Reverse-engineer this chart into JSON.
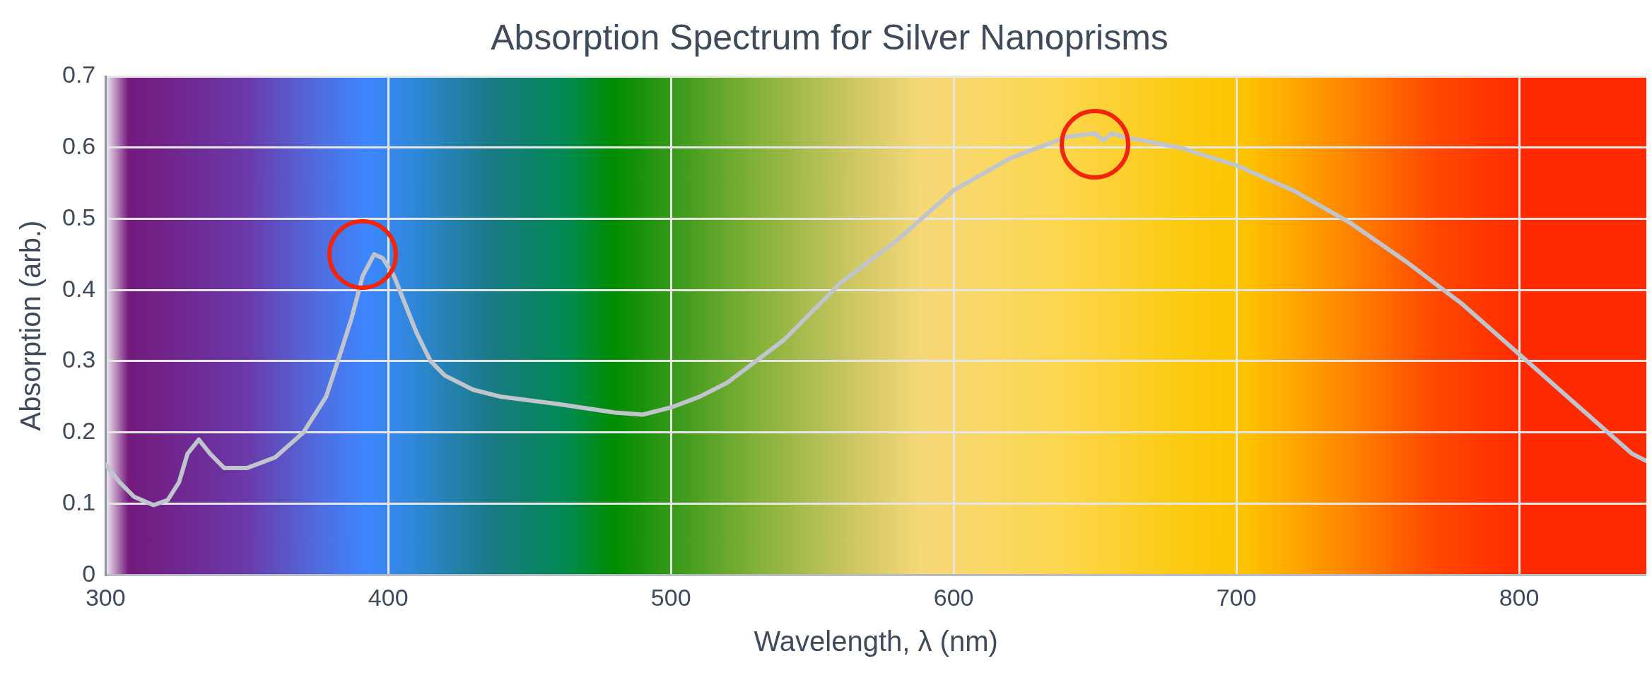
{
  "chart_data": {
    "type": "line",
    "title": "Absorption Spectrum for Silver Nanoprisms",
    "xlabel": "Wavelength, λ (nm)",
    "ylabel": "Absorption (arb.)",
    "x": [
      300,
      305,
      310,
      317,
      322,
      326,
      329,
      333,
      337,
      342,
      350,
      360,
      370,
      378,
      383,
      387,
      391,
      395,
      398,
      402,
      406,
      410,
      415,
      420,
      430,
      440,
      460,
      480,
      490,
      500,
      510,
      520,
      540,
      560,
      580,
      600,
      620,
      640,
      650,
      653,
      656,
      660,
      680,
      700,
      720,
      740,
      760,
      780,
      800,
      820,
      840,
      845
    ],
    "series": [
      {
        "color": "#c0c4cc",
        "values": [
          0.155,
          0.13,
          0.11,
          0.098,
          0.105,
          0.13,
          0.17,
          0.19,
          0.17,
          0.15,
          0.15,
          0.165,
          0.2,
          0.25,
          0.31,
          0.36,
          0.42,
          0.45,
          0.445,
          0.42,
          0.38,
          0.34,
          0.3,
          0.28,
          0.26,
          0.25,
          0.24,
          0.228,
          0.225,
          0.235,
          0.25,
          0.27,
          0.33,
          0.41,
          0.47,
          0.54,
          0.585,
          0.615,
          0.62,
          0.61,
          0.62,
          0.615,
          0.6,
          0.575,
          0.54,
          0.495,
          0.44,
          0.38,
          0.31,
          0.24,
          0.17,
          0.16
        ]
      }
    ],
    "xlim": [
      300,
      845
    ],
    "xticks": [
      300,
      400,
      500,
      600,
      700,
      800
    ],
    "ylim": [
      0,
      0.7
    ],
    "yticks": [
      0,
      0.1,
      0.2,
      0.3,
      0.4,
      0.5,
      0.6,
      0.7
    ],
    "grid": true,
    "legend": false,
    "marker": "none",
    "line_style": "solid"
  }
}
